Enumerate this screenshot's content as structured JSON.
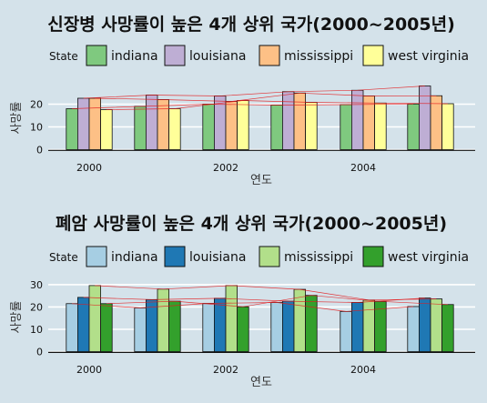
{
  "chart_data": [
    {
      "type": "bar",
      "title": "신장병 사망률이 높은 4개 상위 국가(2000~2005년)",
      "xlabel": "연도",
      "ylabel": "사망률",
      "legend_title": "State",
      "legend_position": "top",
      "x": [
        2000,
        2001,
        2002,
        2003,
        2004,
        2005
      ],
      "x_ticks": [
        "2000",
        "2002",
        "2004"
      ],
      "y_ticks": [
        0,
        10,
        20
      ],
      "ylim": [
        -1,
        29
      ],
      "grid": true,
      "overlay": "thin red lines connecting each state's values across years",
      "series": [
        {
          "name": "indiana",
          "color": "#7fc97f",
          "values": [
            18.0,
            19.0,
            20.0,
            19.6,
            19.8,
            20.1
          ]
        },
        {
          "name": "louisiana",
          "color": "#beaed4",
          "values": [
            22.6,
            24.0,
            23.6,
            25.5,
            26.1,
            28.0
          ]
        },
        {
          "name": "mississippi",
          "color": "#fdc086",
          "values": [
            22.6,
            22.0,
            21.2,
            24.9,
            23.6,
            23.7
          ]
        },
        {
          "name": "west virginia",
          "color": "#ffff99",
          "values": [
            17.6,
            18.0,
            21.6,
            20.8,
            20.5,
            20.2
          ]
        }
      ]
    },
    {
      "type": "bar",
      "title": "폐암 사망률이 높은 4개 상위 국가(2000~2005년)",
      "xlabel": "연도",
      "ylabel": "사망률",
      "legend_title": "State",
      "legend_position": "top",
      "x": [
        2000,
        2001,
        2002,
        2003,
        2004,
        2005
      ],
      "x_ticks": [
        "2000",
        "2002",
        "2004"
      ],
      "y_ticks": [
        0,
        10,
        20,
        30
      ],
      "ylim": [
        -1,
        32
      ],
      "grid": true,
      "overlay": "thin red lines connecting each state's values across years",
      "series": [
        {
          "name": "indiana",
          "color": "#a6cee3",
          "values": [
            21.5,
            19.6,
            21.6,
            22.0,
            18.0,
            20.2
          ]
        },
        {
          "name": "louisiana",
          "color": "#1f78b4",
          "values": [
            24.3,
            23.3,
            23.9,
            22.6,
            22.0,
            24.0
          ]
        },
        {
          "name": "mississippi",
          "color": "#b2df8a",
          "values": [
            29.6,
            28.0,
            29.6,
            27.9,
            23.1,
            23.6
          ]
        },
        {
          "name": "west virginia",
          "color": "#33a02c",
          "values": [
            21.5,
            22.6,
            20.1,
            25.2,
            22.5,
            21.1
          ]
        }
      ]
    }
  ]
}
